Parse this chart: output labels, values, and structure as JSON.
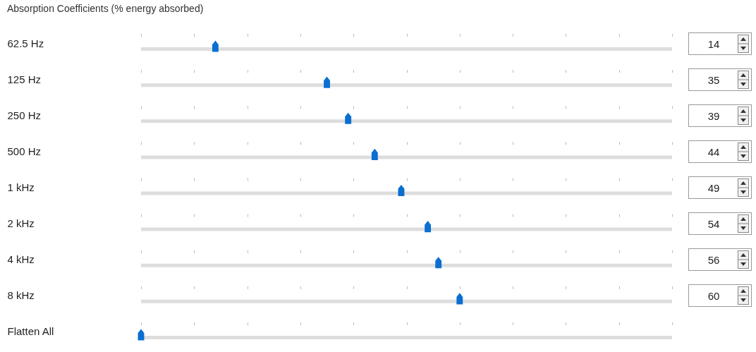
{
  "chart_data": {
    "type": "scatter",
    "orientation": "horizontal",
    "title": "Absorption Coefficients (% energy absorbed)",
    "categories": [
      "62.5 Hz",
      "125 Hz",
      "250 Hz",
      "500 Hz",
      "1 kHz",
      "2 kHz",
      "4 kHz",
      "8 kHz",
      "Flatten All"
    ],
    "values": [
      14,
      35,
      39,
      44,
      49,
      54,
      56,
      60,
      0
    ],
    "value_labels": [
      "14",
      "35",
      "39",
      "44",
      "49",
      "54",
      "56",
      "60",
      null
    ],
    "color": "#0a6fd1",
    "xlim": [
      0,
      100
    ],
    "xticks": [
      {
        "value": 0,
        "label": null
      },
      {
        "value": 10,
        "label": null
      },
      {
        "value": 20,
        "label": null
      },
      {
        "value": 30,
        "label": null
      },
      {
        "value": 40,
        "label": null
      },
      {
        "value": 50,
        "label": null
      },
      {
        "value": 60,
        "label": null
      },
      {
        "value": 70,
        "label": null
      },
      {
        "value": 80,
        "label": null
      },
      {
        "value": 90,
        "label": null
      },
      {
        "value": 100,
        "label": null
      }
    ],
    "grid": "x",
    "tick_labels": "y"
  }
}
